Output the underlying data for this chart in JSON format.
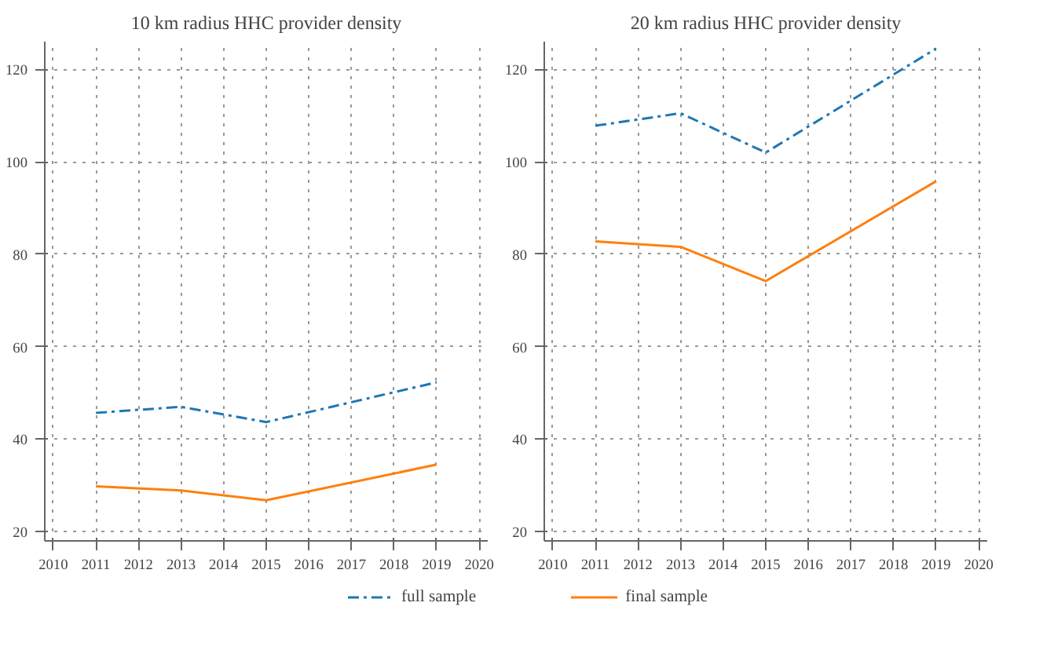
{
  "chart_data": [
    {
      "type": "line",
      "title": "10 km radius HHC provider density",
      "x": [
        2011,
        2013,
        2015,
        2019
      ],
      "series": [
        {
          "name": "full sample",
          "color": "#1f77b4",
          "line_style": "dashed",
          "values": [
            45.7,
            47,
            43.7,
            52.3
          ]
        },
        {
          "name": "final sample",
          "color": "#ff7f0e",
          "line_style": "solid",
          "values": [
            29.8,
            28.9,
            26.8,
            34.5
          ]
        }
      ],
      "xlim": [
        2009.8,
        2020.2
      ],
      "xticks": [
        2010,
        2011,
        2012,
        2013,
        2014,
        2015,
        2016,
        2017,
        2018,
        2019,
        2020
      ],
      "ylim": [
        18,
        126
      ],
      "yticks": [
        20,
        40,
        60,
        80,
        100,
        120
      ],
      "grid": true,
      "legend": "bottom"
    },
    {
      "type": "line",
      "title": "20 km radius HHC provider density",
      "x": [
        2011,
        2013,
        2015,
        2019
      ],
      "series": [
        {
          "color": "#1f77b4",
          "line_style": "dashed",
          "values": [
            107.8,
            110.5,
            102,
            124.5
          ]
        },
        {
          "color": "#ff7f0e",
          "line_style": "solid",
          "values": [
            82.8,
            81.6,
            74.2,
            95.8
          ]
        }
      ],
      "xlim": [
        2009.8,
        2020.2
      ],
      "xticks": [
        2010,
        2011,
        2012,
        2013,
        2014,
        2015,
        2016,
        2017,
        2018,
        2019,
        2020
      ],
      "ylim": [
        18,
        126
      ],
      "yticks": [
        20,
        40,
        60,
        80,
        100,
        120
      ],
      "grid": true,
      "legend": false
    }
  ]
}
